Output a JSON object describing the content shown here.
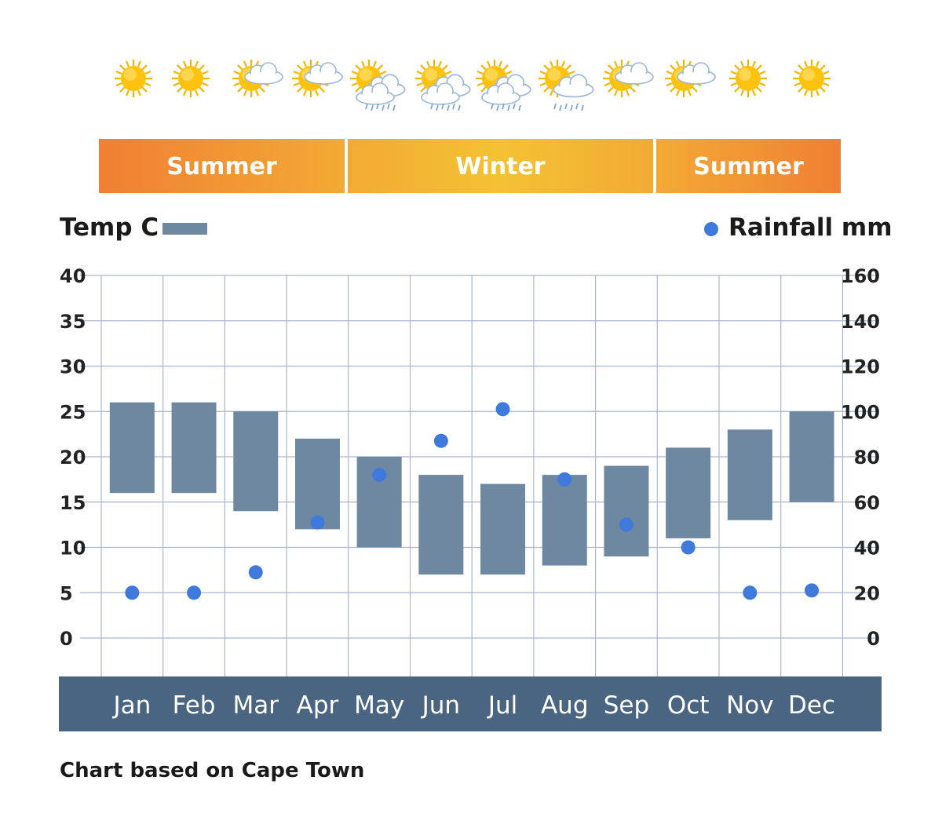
{
  "header": {
    "weather_icons": [
      "sun-icon",
      "sun-icon",
      "partly-cloudy-icon",
      "partly-cloudy-icon",
      "sun-cloud-rain-icon",
      "sun-cloud-rain-icon",
      "sun-cloud-rain-icon",
      "sun-cloud-drizzle-icon",
      "partly-cloudy-icon",
      "partly-cloudy-icon",
      "sun-icon",
      "sun-icon"
    ],
    "seasons": [
      {
        "label": "Summer",
        "from_month": "Jan",
        "to_month": "Apr"
      },
      {
        "label": "Winter",
        "from_month": "May",
        "to_month": "Sep"
      },
      {
        "label": "Summer",
        "from_month": "Oct",
        "to_month": "Dec"
      }
    ]
  },
  "legend": {
    "temp_label": "Temp C",
    "rain_label": "Rainfall mm"
  },
  "colors": {
    "temp_bar": "#6f88a2",
    "rain_dot": "#3f79dc",
    "month_band": "#4a6581",
    "grid": "#aab6cf",
    "summer_edge": "#f07f33",
    "summer_mid": "#f3aa34",
    "winter_edge": "#f3aa34",
    "winter_mid": "#f3c233"
  },
  "footnote": "Chart based on Cape Town",
  "chart_data": {
    "type": "bar",
    "categories": [
      "Jan",
      "Feb",
      "Mar",
      "Apr",
      "May",
      "Jun",
      "Jul",
      "Aug",
      "Sep",
      "Oct",
      "Nov",
      "Dec"
    ],
    "series": [
      {
        "name": "Temp C",
        "type": "floating-bar",
        "axis": "left",
        "low": [
          16,
          16,
          14,
          12,
          10,
          7,
          7,
          8,
          9,
          11,
          13,
          15
        ],
        "high": [
          26,
          26,
          25,
          22,
          20,
          18,
          17,
          18,
          19,
          21,
          23,
          25
        ]
      },
      {
        "name": "Rainfall mm",
        "type": "scatter",
        "axis": "right",
        "values": [
          20,
          20,
          29,
          51,
          72,
          87,
          101,
          70,
          50,
          40,
          20,
          21
        ]
      }
    ],
    "y_left": {
      "ticks": [
        "0",
        "5",
        "10",
        "15",
        "20",
        "25",
        "30",
        "35",
        "40"
      ],
      "ylim": [
        0,
        40
      ]
    },
    "y_right": {
      "ticks": [
        "0",
        "20",
        "40",
        "60",
        "80",
        "100",
        "120",
        "140",
        "160"
      ],
      "ylim": [
        0,
        160
      ]
    },
    "grid": true,
    "legend_placement": "top"
  }
}
